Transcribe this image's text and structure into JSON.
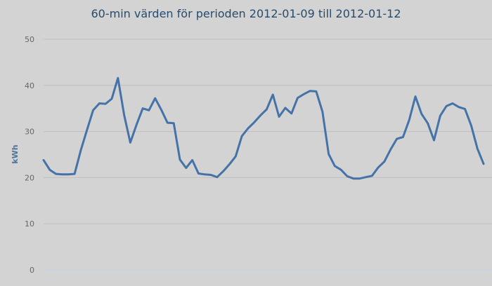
{
  "chart_data": {
    "type": "line",
    "title": "60-min värden för perioden 2012-01-09 till 2012-01-12",
    "xlabel": "",
    "ylabel": "kWh",
    "ylim": [
      0,
      50
    ],
    "yticks": [
      "0",
      "10",
      "20",
      "30",
      "40",
      "50"
    ],
    "grid": true,
    "legend": "none",
    "line_color": "#4572a7",
    "background": "#d3d3d3",
    "series": [
      {
        "values": [
          23.8,
          21.7,
          20.8,
          20.7,
          20.7,
          20.8,
          25.9,
          30.3,
          34.6,
          36.1,
          36.0,
          37.1,
          41.6,
          33.6,
          27.6,
          31.5,
          35.0,
          34.6,
          37.2,
          34.7,
          31.9,
          31.8,
          23.9,
          22.1,
          23.8,
          20.9,
          20.7,
          20.6,
          20.1,
          21.4,
          22.9,
          24.6,
          29.0,
          30.7,
          32.0,
          33.5,
          34.8,
          38.0,
          33.2,
          35.1,
          33.9,
          37.3,
          38.1,
          38.8,
          38.7,
          34.3,
          25.1,
          22.5,
          21.7,
          20.3,
          19.8,
          19.8,
          20.1,
          20.4,
          22.2,
          23.5,
          26.1,
          28.4,
          28.8,
          32.5,
          37.6,
          33.8,
          31.8,
          28.1,
          33.4,
          35.5,
          36.1,
          35.3,
          34.9,
          31.3,
          26.3,
          23.0
        ]
      }
    ]
  }
}
